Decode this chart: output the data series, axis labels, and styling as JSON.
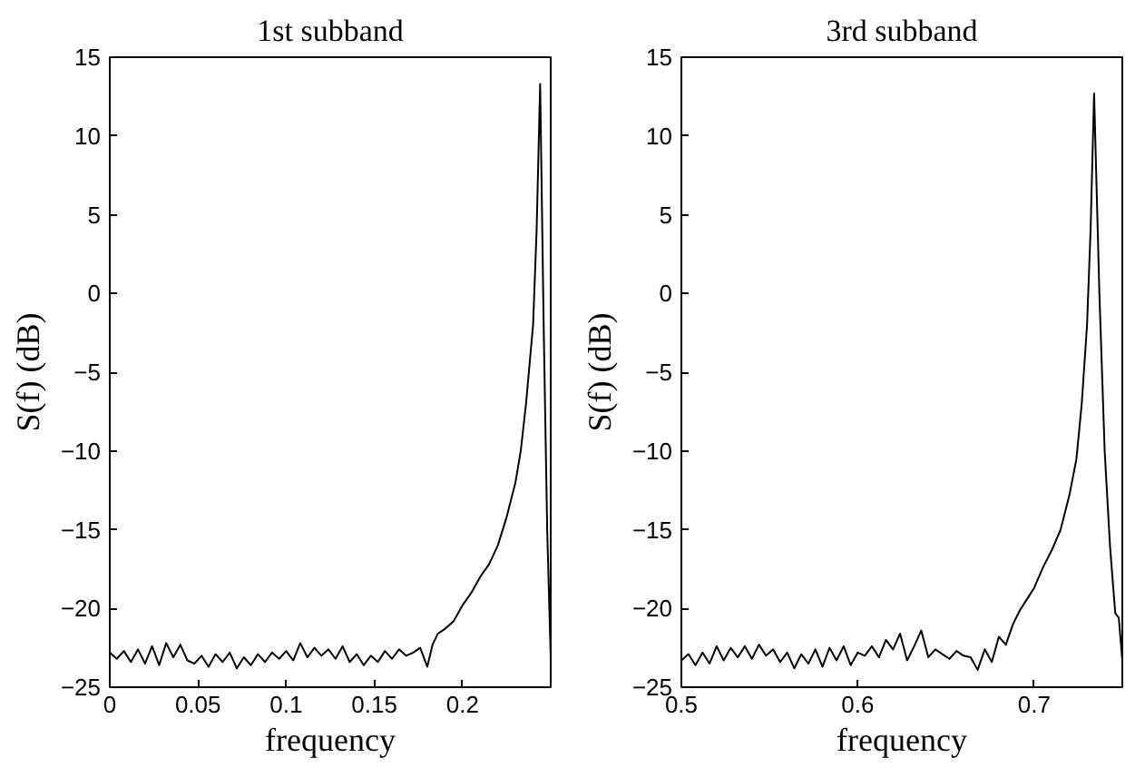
{
  "chart_data": [
    {
      "type": "line",
      "title": "1st subband",
      "xlabel": "frequency",
      "ylabel": "S(f) (dB)",
      "xlim": [
        0,
        0.25
      ],
      "xticks": [
        0,
        0.05,
        0.1,
        0.15,
        0.2
      ],
      "ylim": [
        -25,
        15
      ],
      "yticks": [
        -25,
        -20,
        -15,
        -10,
        -5,
        0,
        5,
        10,
        15
      ],
      "series": [
        {
          "color": "#000000",
          "x": [
            0,
            0.004,
            0.008,
            0.012,
            0.016,
            0.02,
            0.024,
            0.028,
            0.032,
            0.036,
            0.04,
            0.044,
            0.048,
            0.052,
            0.056,
            0.06,
            0.064,
            0.068,
            0.072,
            0.076,
            0.08,
            0.084,
            0.088,
            0.092,
            0.096,
            0.1,
            0.104,
            0.108,
            0.112,
            0.116,
            0.12,
            0.124,
            0.128,
            0.132,
            0.136,
            0.14,
            0.144,
            0.148,
            0.152,
            0.156,
            0.16,
            0.164,
            0.168,
            0.172,
            0.176,
            0.18,
            0.183,
            0.186,
            0.19,
            0.195,
            0.2,
            0.205,
            0.21,
            0.215,
            0.22,
            0.225,
            0.23,
            0.233,
            0.236,
            0.24,
            0.242,
            0.244,
            0.246,
            0.248,
            0.25
          ],
          "values": [
            -22.8,
            -23.2,
            -22.7,
            -23.4,
            -22.6,
            -23.5,
            -22.4,
            -23.6,
            -22.2,
            -23.1,
            -22.3,
            -23.3,
            -23.5,
            -23.0,
            -23.7,
            -22.9,
            -23.4,
            -22.8,
            -23.8,
            -23.1,
            -23.6,
            -22.9,
            -23.4,
            -22.8,
            -23.2,
            -22.7,
            -23.3,
            -22.2,
            -23.1,
            -22.5,
            -23.0,
            -22.6,
            -23.2,
            -22.4,
            -23.4,
            -22.9,
            -23.6,
            -23.0,
            -23.4,
            -22.7,
            -23.2,
            -22.6,
            -23.0,
            -22.8,
            -22.5,
            -23.7,
            -22.3,
            -21.6,
            -21.3,
            -20.8,
            -19.8,
            -19.0,
            -18.0,
            -17.2,
            -16.0,
            -14.2,
            -12.0,
            -10.0,
            -7.0,
            -2.0,
            4.0,
            13.3,
            -2.0,
            -15.0,
            -23.2
          ]
        }
      ]
    },
    {
      "type": "line",
      "title": "3rd subband",
      "xlabel": "frequency",
      "ylabel": "S(f) (dB)",
      "xlim": [
        0.5,
        0.75
      ],
      "xticks": [
        0.5,
        0.6,
        0.7
      ],
      "ylim": [
        -25,
        15
      ],
      "yticks": [
        -25,
        -20,
        -15,
        -10,
        -5,
        0,
        5,
        10,
        15
      ],
      "series": [
        {
          "color": "#000000",
          "x": [
            0.5,
            0.504,
            0.508,
            0.512,
            0.516,
            0.52,
            0.524,
            0.528,
            0.532,
            0.536,
            0.54,
            0.544,
            0.548,
            0.552,
            0.556,
            0.56,
            0.564,
            0.568,
            0.572,
            0.576,
            0.58,
            0.584,
            0.588,
            0.592,
            0.596,
            0.6,
            0.604,
            0.608,
            0.612,
            0.616,
            0.62,
            0.624,
            0.628,
            0.632,
            0.636,
            0.64,
            0.644,
            0.648,
            0.652,
            0.656,
            0.66,
            0.664,
            0.668,
            0.672,
            0.676,
            0.68,
            0.684,
            0.688,
            0.692,
            0.696,
            0.7,
            0.705,
            0.71,
            0.715,
            0.72,
            0.724,
            0.727,
            0.73,
            0.732,
            0.734,
            0.737,
            0.74,
            0.743,
            0.746,
            0.748,
            0.75
          ],
          "values": [
            -23.3,
            -22.9,
            -23.6,
            -22.8,
            -23.5,
            -22.4,
            -23.3,
            -22.5,
            -23.1,
            -22.4,
            -23.2,
            -22.3,
            -23.0,
            -22.6,
            -23.4,
            -22.8,
            -23.8,
            -22.9,
            -23.5,
            -22.6,
            -23.7,
            -22.5,
            -23.3,
            -22.4,
            -23.6,
            -22.8,
            -23.0,
            -22.4,
            -23.1,
            -22.0,
            -22.6,
            -21.6,
            -23.3,
            -22.4,
            -21.4,
            -23.1,
            -22.6,
            -22.9,
            -23.2,
            -22.7,
            -23.0,
            -23.1,
            -23.9,
            -22.6,
            -23.4,
            -21.8,
            -22.3,
            -21.0,
            -20.1,
            -19.4,
            -18.7,
            -17.4,
            -16.3,
            -15.0,
            -12.8,
            -10.5,
            -7.0,
            -2.0,
            4.0,
            12.7,
            0.0,
            -10.0,
            -16.0,
            -20.3,
            -20.6,
            -23.3
          ]
        }
      ]
    }
  ]
}
